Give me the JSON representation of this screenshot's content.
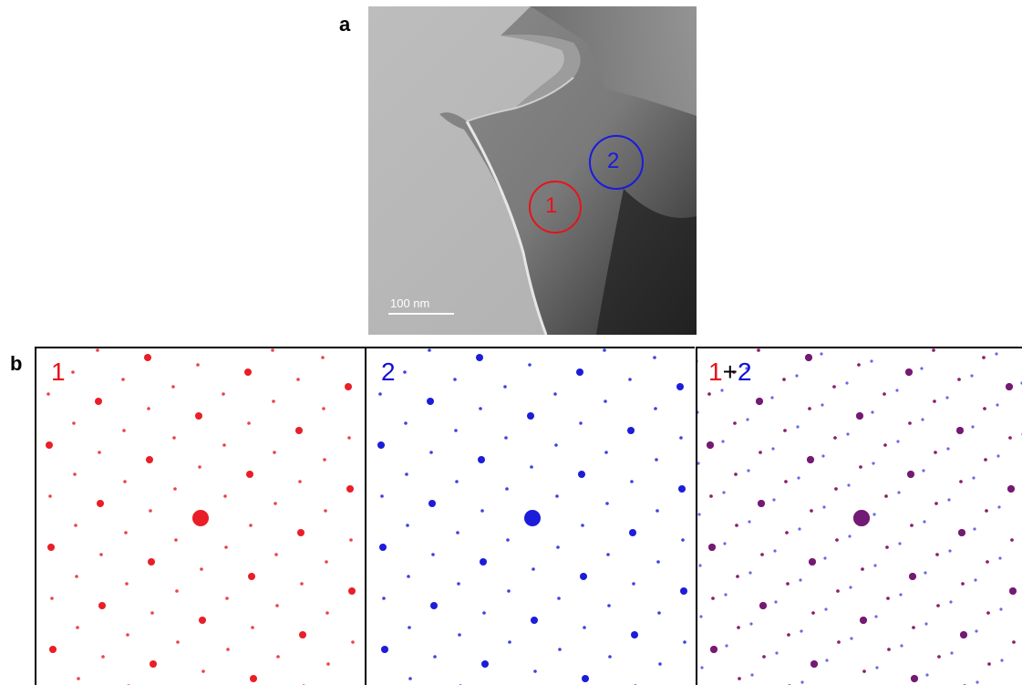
{
  "figure": {
    "panel_a": {
      "label": "a",
      "region_1": "1",
      "region_2": "2",
      "scale_bar": "100 nm",
      "colors": {
        "region_1": "#e8121a",
        "region_2": "#1a1ae0"
      }
    },
    "panel_b": {
      "label": "b",
      "pattern_1": {
        "label": "1",
        "color": "#e8121a"
      },
      "pattern_2": {
        "label": "2",
        "color": "#1010d8"
      },
      "pattern_combined": {
        "label_part_1": "1",
        "label_plus": "+",
        "label_part_2": "2"
      }
    }
  }
}
